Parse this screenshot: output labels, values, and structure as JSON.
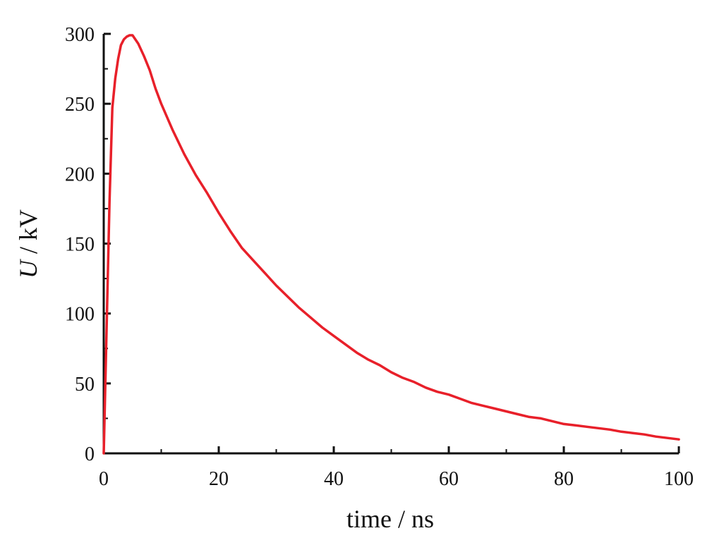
{
  "chart_data": {
    "type": "line",
    "title": "",
    "xlabel": "time / ns",
    "ylabel": {
      "variable": "U",
      "unit": " / kV"
    },
    "xlim": [
      0,
      100
    ],
    "ylim": [
      0,
      300
    ],
    "x_ticks": [
      0,
      20,
      40,
      60,
      80,
      100
    ],
    "y_ticks": [
      0,
      50,
      100,
      150,
      200,
      250,
      300
    ],
    "x_tick_labels": [
      "0",
      "20",
      "40",
      "60",
      "80",
      "100"
    ],
    "y_tick_labels": [
      "0",
      "50",
      "100",
      "150",
      "200",
      "250",
      "300"
    ],
    "x_minor_step": 10,
    "y_minor_step": 25,
    "grid": false,
    "legend": "none",
    "series": [
      {
        "color": "#e8202a",
        "x": [
          0,
          0.5,
          1,
          1.5,
          2,
          2.5,
          3,
          3.5,
          4,
          4.5,
          5,
          6,
          7,
          8,
          9,
          10,
          12,
          14,
          16,
          18,
          20,
          22,
          24,
          26,
          28,
          30,
          32,
          34,
          36,
          38,
          40,
          42,
          44,
          46,
          48,
          50,
          52,
          54,
          56,
          58,
          60,
          62,
          64,
          66,
          68,
          70,
          72,
          74,
          76,
          78,
          80,
          82,
          84,
          86,
          88,
          90,
          92,
          94,
          96,
          98,
          100
        ],
        "y": [
          0,
          90,
          180,
          247,
          268,
          282,
          292,
          296,
          298,
          299,
          299,
          293,
          284,
          274,
          261,
          250,
          231,
          214,
          199,
          186,
          172,
          159,
          147,
          138,
          129,
          120,
          112,
          104,
          97,
          90,
          84,
          78,
          72,
          67,
          63,
          58,
          54,
          51,
          47,
          44,
          42,
          39,
          36,
          34,
          32,
          30,
          28,
          26,
          25,
          23,
          21,
          20,
          19,
          18,
          17,
          15.5,
          14.5,
          13.5,
          12,
          11,
          10
        ]
      }
    ]
  }
}
